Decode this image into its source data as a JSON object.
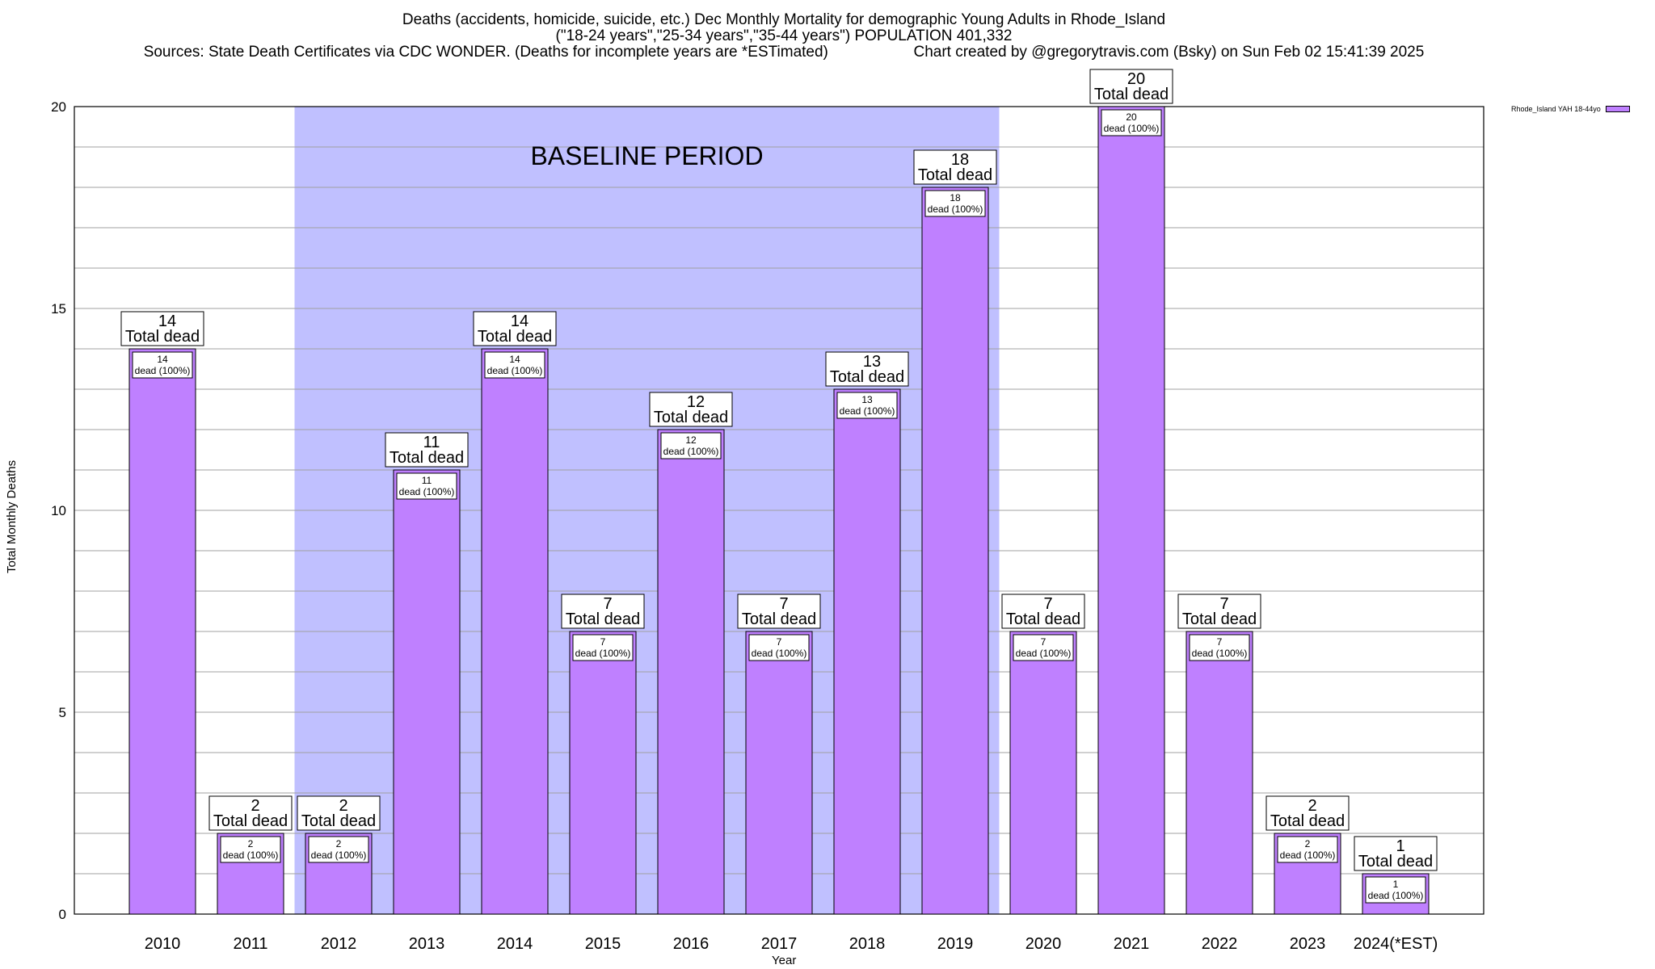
{
  "chart_data": {
    "type": "bar",
    "title": "Deaths (accidents, homicide, suicide, etc.) Dec Monthly Mortality for demographic Young Adults in Rhode_Island",
    "subtitle": "(\"18-24 years\",\"25-34 years\",\"35-44 years\") POPULATION 401,332",
    "source_note": "Sources: State Death Certificates via CDC WONDER. (Deaths for incomplete years are *ESTimated)",
    "credit_note": "Chart created by @gregorytravis.com (Bsky) on Sun Feb 02 15:41:39 2025",
    "xlabel": "Year",
    "ylabel": "Total Monthly Deaths",
    "ylim": [
      0,
      20
    ],
    "yticks": [
      0,
      5,
      10,
      15,
      20
    ],
    "grid": true,
    "legend_position": "top-right",
    "categories": [
      "2010",
      "2011",
      "2012",
      "2013",
      "2014",
      "2015",
      "2016",
      "2017",
      "2018",
      "2019",
      "2020",
      "2021",
      "2022",
      "2023",
      "2024(*EST)"
    ],
    "series": [
      {
        "name": "Rhode_Island YAH 18-44yo",
        "values": [
          14,
          2,
          2,
          11,
          14,
          7,
          12,
          7,
          13,
          18,
          7,
          20,
          7,
          2,
          1
        ],
        "color": "#bf80ff"
      }
    ],
    "total_label_suffix": "Total dead",
    "bar_label_suffix": "dead (100%)",
    "annotations": [
      {
        "text": "BASELINE PERIOD",
        "start_category": "2012",
        "end_category": "2019",
        "color": "#c0c0ff"
      }
    ]
  }
}
